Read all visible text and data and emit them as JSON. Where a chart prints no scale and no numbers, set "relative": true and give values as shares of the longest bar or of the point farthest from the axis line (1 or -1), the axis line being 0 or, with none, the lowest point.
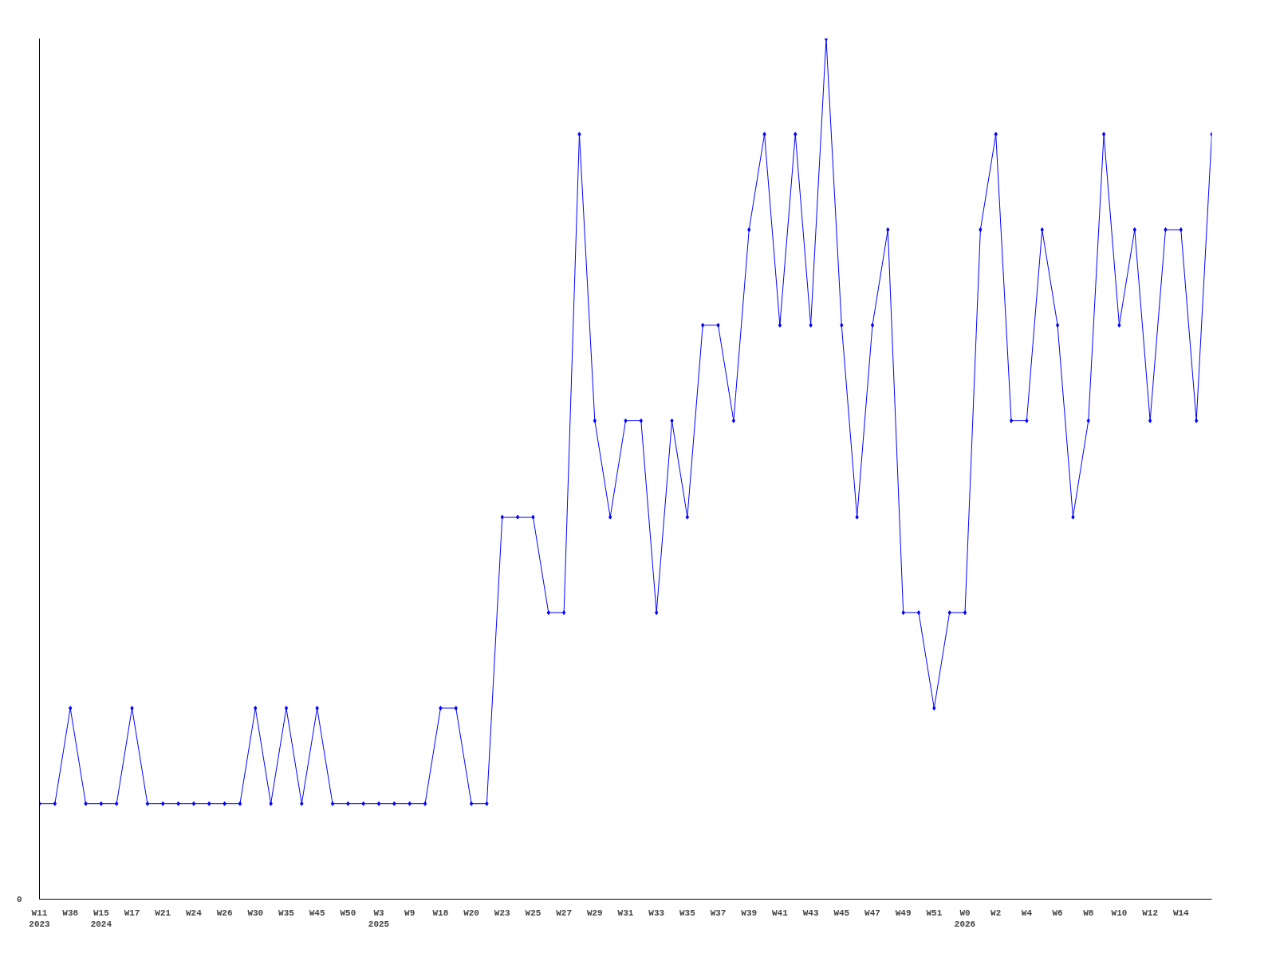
{
  "chart_data": {
    "type": "line",
    "relative": true,
    "marker": "diamond",
    "grid": false,
    "categories": [
      "W11\n2023",
      null,
      "W38",
      null,
      "W15\n2024",
      null,
      "W17",
      null,
      "W21",
      null,
      "W24",
      null,
      "W26",
      null,
      "W30",
      null,
      "W35",
      null,
      "W45",
      null,
      "W50",
      null,
      "W3\n2025",
      null,
      "W9",
      null,
      "W18",
      null,
      "W20",
      null,
      "W23",
      null,
      "W25",
      null,
      "W27",
      null,
      "W29",
      null,
      "W31",
      null,
      "W33",
      null,
      "W35",
      null,
      "W37",
      null,
      "W39",
      null,
      "W41",
      null,
      "W43",
      null,
      "W45",
      null,
      "W47",
      null,
      "W49",
      null,
      "W51",
      null,
      "W0\n2026",
      null,
      "W2",
      null,
      "W4",
      null,
      "W6",
      null,
      "W8",
      null,
      "W10",
      null,
      "W12",
      null,
      "W14",
      null,
      null
    ],
    "series": [
      {
        "color": "#0000ff",
        "values": [
          0.111,
          0.111,
          0.222,
          0.111,
          0.111,
          0.111,
          0.222,
          0.111,
          0.111,
          0.111,
          0.111,
          0.111,
          0.111,
          0.111,
          0.222,
          0.111,
          0.222,
          0.111,
          0.222,
          0.111,
          0.111,
          0.111,
          0.111,
          0.111,
          0.111,
          0.111,
          0.222,
          0.222,
          0.111,
          0.111,
          0.444,
          0.444,
          0.444,
          0.333,
          0.333,
          0.889,
          0.556,
          0.444,
          0.556,
          0.556,
          0.333,
          0.556,
          0.444,
          0.667,
          0.667,
          0.556,
          0.778,
          0.889,
          0.667,
          0.889,
          0.667,
          1,
          0.667,
          0.444,
          0.667,
          0.778,
          0.333,
          0.333,
          0.222,
          0.333,
          0.333,
          0.778,
          0.889,
          0.556,
          0.556,
          0.778,
          0.667,
          0.444,
          0.556,
          0.889,
          0.667,
          0.778,
          0.556,
          0.778,
          0.778,
          0.556,
          0.889
        ]
      }
    ],
    "annotations": [
      "0"
    ]
  }
}
